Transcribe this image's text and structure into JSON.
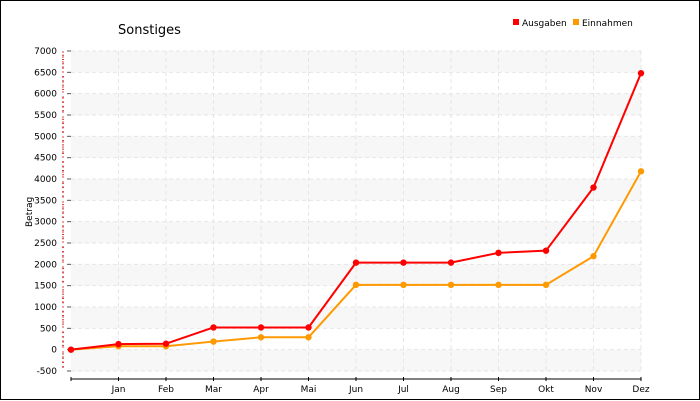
{
  "chart_data": {
    "type": "line",
    "title": "Sonstiges",
    "xlabel": "",
    "ylabel": "Betrag",
    "categories": [
      "",
      "Jan",
      "Feb",
      "Mar",
      "Apr",
      "Mai",
      "Jun",
      "Jul",
      "Aug",
      "Sep",
      "Okt",
      "Nov",
      "Dez"
    ],
    "ylim": [
      -500,
      7000
    ],
    "yticks": [
      -500,
      0,
      500,
      1000,
      1500,
      2000,
      2500,
      3000,
      3500,
      4000,
      4500,
      5000,
      5500,
      6000,
      6500,
      7000
    ],
    "grid": true,
    "legend_position": "top-right",
    "series": [
      {
        "name": "Ausgaben",
        "color": "#ff0000",
        "values": [
          0,
          130,
          140,
          520,
          520,
          520,
          2040,
          2040,
          2040,
          2270,
          2320,
          3800,
          6480
        ]
      },
      {
        "name": "Einnahmen",
        "color": "#ff9900",
        "values": [
          0,
          80,
          80,
          190,
          290,
          290,
          1520,
          1520,
          1520,
          1520,
          1520,
          2190,
          4180
        ]
      }
    ]
  }
}
